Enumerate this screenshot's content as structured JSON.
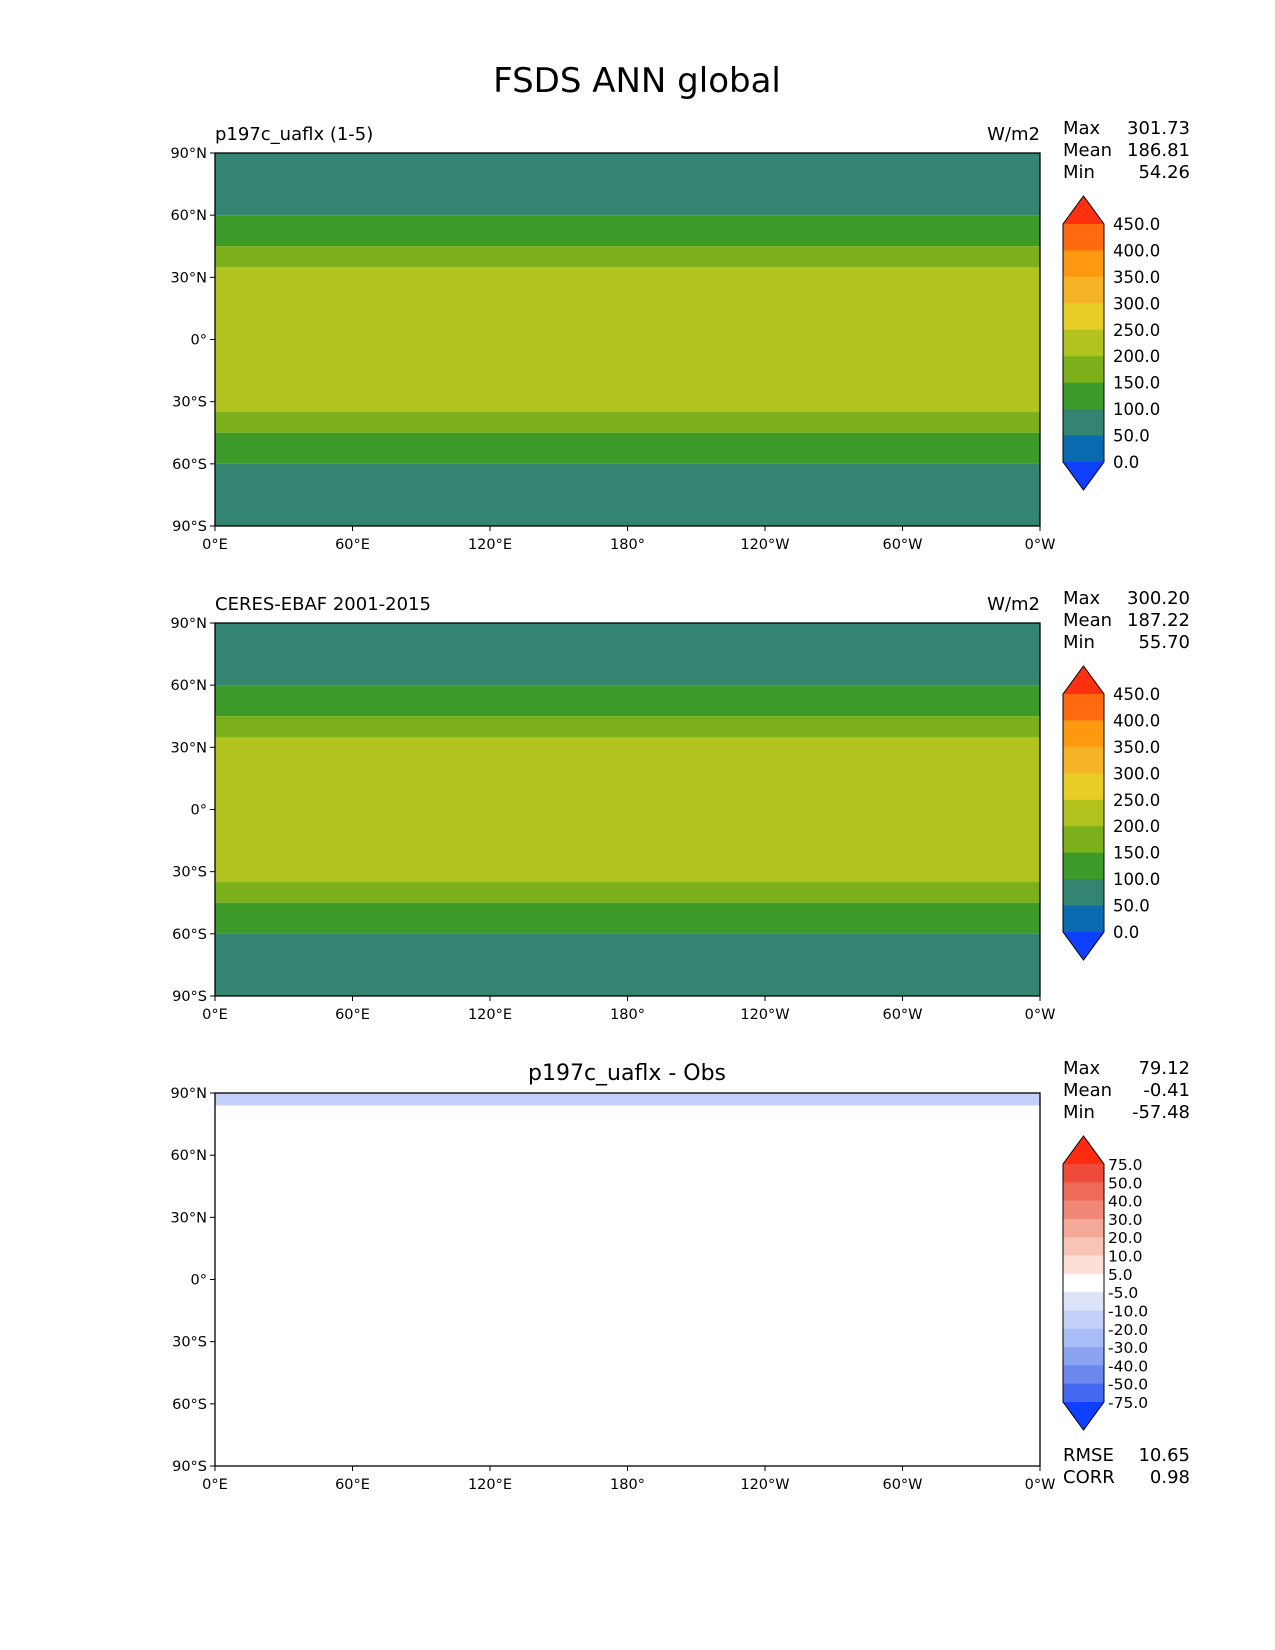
{
  "figure_title": "FSDS ANN global",
  "chart_data": [
    {
      "type": "heatmap",
      "title": "p197c_uaflx (1-5)",
      "units": "W/m2",
      "stats": [
        {
          "label": "Max",
          "value": "301.73"
        },
        {
          "label": "Mean",
          "value": "186.81"
        },
        {
          "label": "Min",
          "value": "54.26"
        }
      ],
      "x_ticks": [
        "0°E",
        "60°E",
        "120°E",
        "180°",
        "120°W",
        "60°W",
        "0°W"
      ],
      "y_ticks": [
        "90°N",
        "60°N",
        "30°N",
        "0°",
        "30°S",
        "60°S",
        "90°S"
      ],
      "xlim": [
        0,
        360
      ],
      "ylim": [
        -90,
        90
      ],
      "colorbar": {
        "levels": [
          "450.0",
          "400.0",
          "350.0",
          "300.0",
          "250.0",
          "200.0",
          "150.0",
          "100.0",
          "50.0",
          "0.0"
        ],
        "colors": [
          "#ff3010",
          "#ff6a10",
          "#ff9a10",
          "#f5b428",
          "#e8cc28",
          "#b2c21e",
          "#7cb01a",
          "#3c9a28",
          "#338470",
          "#0a6ab0",
          "#1040ff"
        ]
      },
      "regions": [
        {
          "lat_min": 60,
          "lat_max": 90,
          "level": "100.0"
        },
        {
          "lat_min": 45,
          "lat_max": 60,
          "level": "150.0"
        },
        {
          "lat_min": 35,
          "lat_max": 45,
          "level": "200.0"
        },
        {
          "lat_min": -35,
          "lat_max": 35,
          "level": "250.0"
        },
        {
          "lat_min": -45,
          "lat_max": -35,
          "level": "200.0"
        },
        {
          "lat_min": -60,
          "lat_max": -45,
          "level": "150.0"
        },
        {
          "lat_min": -90,
          "lat_max": -60,
          "level": "100.0"
        }
      ]
    },
    {
      "type": "heatmap",
      "title": "CERES-EBAF 2001-2015",
      "units": "W/m2",
      "stats": [
        {
          "label": "Max",
          "value": "300.20"
        },
        {
          "label": "Mean",
          "value": "187.22"
        },
        {
          "label": "Min",
          "value": "55.70"
        }
      ],
      "x_ticks": [
        "0°E",
        "60°E",
        "120°E",
        "180°",
        "120°W",
        "60°W",
        "0°W"
      ],
      "y_ticks": [
        "90°N",
        "60°N",
        "30°N",
        "0°",
        "30°S",
        "60°S",
        "90°S"
      ],
      "xlim": [
        0,
        360
      ],
      "ylim": [
        -90,
        90
      ],
      "colorbar": {
        "levels": [
          "450.0",
          "400.0",
          "350.0",
          "300.0",
          "250.0",
          "200.0",
          "150.0",
          "100.0",
          "50.0",
          "0.0"
        ],
        "colors": [
          "#ff3010",
          "#ff6a10",
          "#ff9a10",
          "#f5b428",
          "#e8cc28",
          "#b2c21e",
          "#7cb01a",
          "#3c9a28",
          "#338470",
          "#0a6ab0",
          "#1040ff"
        ]
      },
      "regions": [
        {
          "lat_min": 60,
          "lat_max": 90,
          "level": "100.0"
        },
        {
          "lat_min": 45,
          "lat_max": 60,
          "level": "150.0"
        },
        {
          "lat_min": 35,
          "lat_max": 45,
          "level": "200.0"
        },
        {
          "lat_min": -35,
          "lat_max": 35,
          "level": "250.0"
        },
        {
          "lat_min": -45,
          "lat_max": -35,
          "level": "200.0"
        },
        {
          "lat_min": -60,
          "lat_max": -45,
          "level": "150.0"
        },
        {
          "lat_min": -90,
          "lat_max": -60,
          "level": "100.0"
        }
      ]
    },
    {
      "type": "heatmap",
      "title": "p197c_uaflx - Obs",
      "units": "",
      "stats": [
        {
          "label": "Max",
          "value": "79.12"
        },
        {
          "label": "Mean",
          "value": "-0.41"
        },
        {
          "label": "Min",
          "value": "-57.48"
        }
      ],
      "extra_stats": [
        {
          "label": "RMSE",
          "value": "10.65"
        },
        {
          "label": "CORR",
          "value": "0.98"
        }
      ],
      "x_ticks": [
        "0°E",
        "60°E",
        "120°E",
        "180°",
        "120°W",
        "60°W",
        "0°W"
      ],
      "y_ticks": [
        "90°N",
        "60°N",
        "30°N",
        "0°",
        "30°S",
        "60°S",
        "90°S"
      ],
      "xlim": [
        0,
        360
      ],
      "ylim": [
        -90,
        90
      ],
      "colorbar": {
        "levels": [
          "75.0",
          "50.0",
          "40.0",
          "30.0",
          "20.0",
          "10.0",
          "5.0",
          "-5.0",
          "-10.0",
          "-20.0",
          "-30.0",
          "-40.0",
          "-50.0",
          "-75.0"
        ],
        "colors": [
          "#ff2a10",
          "#f04a3a",
          "#f06a5a",
          "#f08878",
          "#f4a898",
          "#f8c4b8",
          "#fce0d8",
          "#ffffff",
          "#dde4fa",
          "#c4d0fa",
          "#a8bcf6",
          "#8aa4f2",
          "#6a88ee",
          "#4468f0",
          "#1040ff"
        ]
      },
      "regions": [
        {
          "lat_min": 84,
          "lat_max": 90,
          "level": "-10.0"
        },
        {
          "lat_min": -90,
          "lat_max": 84,
          "level": "5.0"
        }
      ]
    }
  ]
}
